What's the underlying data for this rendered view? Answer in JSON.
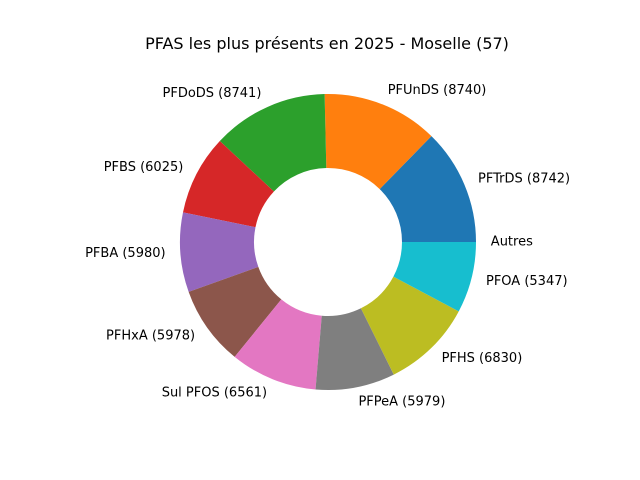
{
  "chart_data": {
    "type": "pie",
    "title": "PFAS les plus présents en 2025 - Moselle (57)",
    "donut": true,
    "start_angle_deg": 0,
    "direction": "counterclockwise",
    "slices": [
      {
        "label": "PFTrDS (8742)",
        "value": 8742,
        "color": "#1f77b4"
      },
      {
        "label": "PFUnDS (8740)",
        "value": 8740,
        "color": "#ff7f0e"
      },
      {
        "label": "PFDoDS (8741)",
        "value": 8741,
        "color": "#2ca02c"
      },
      {
        "label": "PFBS (6025)",
        "value": 6025,
        "color": "#d62728"
      },
      {
        "label": "PFBA (5980)",
        "value": 5980,
        "color": "#9467bd"
      },
      {
        "label": "PFHxA (5978)",
        "value": 5978,
        "color": "#8c564b"
      },
      {
        "label": "Sul PFOS (6561)",
        "value": 6561,
        "color": "#e377c2"
      },
      {
        "label": "PFPeA (5979)",
        "value": 5979,
        "color": "#7f7f7f"
      },
      {
        "label": "PFHS (6830)",
        "value": 6830,
        "color": "#bcbd22"
      },
      {
        "label": "PFOA (5347)",
        "value": 5347,
        "color": "#17becf"
      },
      {
        "label": "Autres",
        "value": 0,
        "color": "#1f77b4"
      }
    ]
  }
}
